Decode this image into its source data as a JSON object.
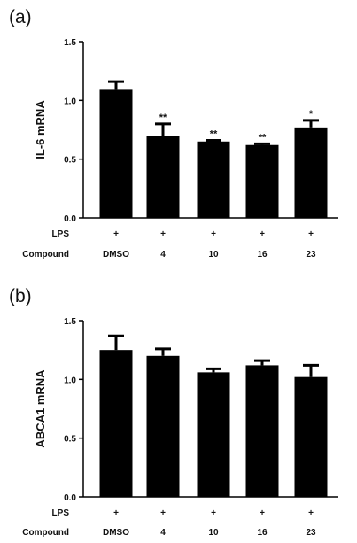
{
  "chart_data": [
    {
      "panel": "(a)",
      "type": "bar",
      "ylabel": "IL-6 mRNA",
      "ylim": [
        0,
        1.5
      ],
      "yticks": [
        "0.0",
        "0.5",
        "1.0",
        "1.5"
      ],
      "rows": [
        {
          "label": "LPS",
          "values": [
            "+",
            "+",
            "+",
            "+",
            "+"
          ]
        },
        {
          "label": "Compound",
          "values": [
            "DMSO",
            "4",
            "10",
            "16",
            "23"
          ]
        }
      ],
      "values": [
        1.09,
        0.7,
        0.65,
        0.62,
        0.77
      ],
      "errors": [
        0.07,
        0.1,
        0.01,
        0.01,
        0.06
      ],
      "significance": [
        "",
        "**",
        "**",
        "**",
        "*"
      ],
      "bar_color": "#000000"
    },
    {
      "panel": "(b)",
      "type": "bar",
      "ylabel": "ABCA1 mRNA",
      "ylim": [
        0,
        1.5
      ],
      "yticks": [
        "0.0",
        "0.5",
        "1.0",
        "1.5"
      ],
      "rows": [
        {
          "label": "LPS",
          "values": [
            "+",
            "+",
            "+",
            "+",
            "+"
          ]
        },
        {
          "label": "Compound",
          "values": [
            "DMSO",
            "4",
            "10",
            "16",
            "23"
          ]
        }
      ],
      "values": [
        1.25,
        1.2,
        1.06,
        1.12,
        1.02
      ],
      "errors": [
        0.12,
        0.06,
        0.03,
        0.04,
        0.1
      ],
      "significance": [
        "",
        "",
        "",
        "",
        ""
      ],
      "bar_color": "#000000"
    }
  ]
}
